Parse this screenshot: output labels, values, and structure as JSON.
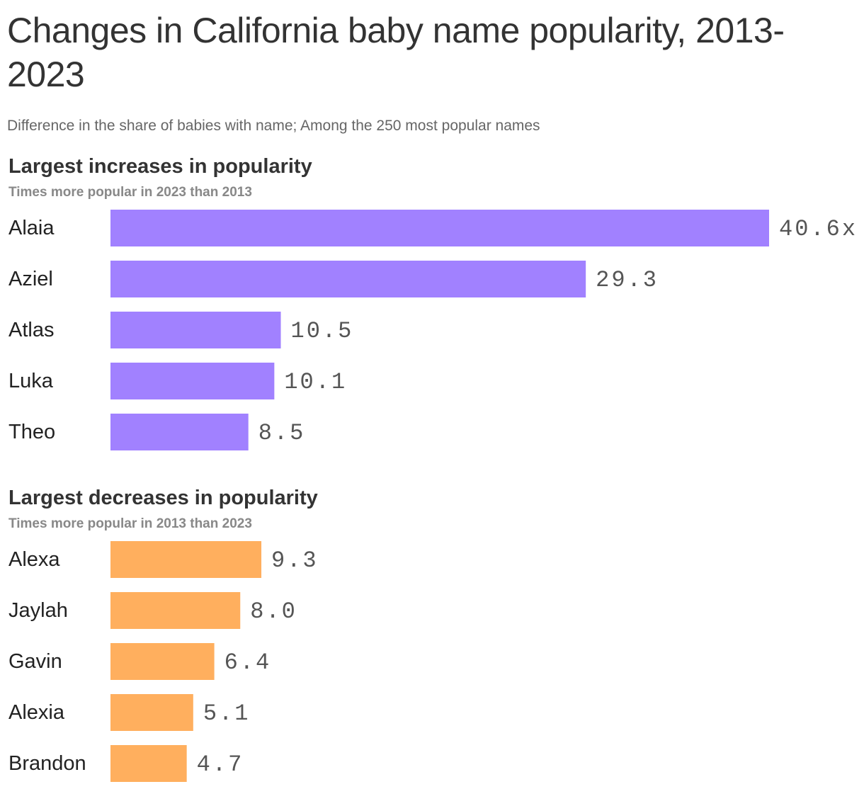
{
  "title": "Changes in California baby name popularity, 2013-2023",
  "subtitle": "Difference in the share of babies with name; Among the 250 most popular names",
  "chart_data": [
    {
      "type": "bar",
      "orientation": "horizontal",
      "title": "Largest increases in popularity",
      "subtitle": "Times more popular in 2023 than 2013",
      "categories": [
        "Alaia",
        "Aziel",
        "Atlas",
        "Luka",
        "Theo"
      ],
      "values": [
        40.6,
        29.3,
        10.5,
        10.1,
        8.5
      ],
      "value_labels": [
        "40.6x",
        "29.3",
        "10.5",
        "10.1",
        "8.5"
      ],
      "xlim": [
        0,
        40.6
      ],
      "color": "#a181ff",
      "grid": false
    },
    {
      "type": "bar",
      "orientation": "horizontal",
      "title": "Largest decreases in popularity",
      "subtitle": "Times more popular in 2013 than 2023",
      "categories": [
        "Alexa",
        "Jaylah",
        "Gavin",
        "Alexia",
        "Brandon"
      ],
      "values": [
        9.3,
        8.0,
        6.4,
        5.1,
        4.7
      ],
      "value_labels": [
        "9.3",
        "8.0",
        "6.4",
        "5.1",
        "4.7"
      ],
      "xlim": [
        0,
        40.6
      ],
      "color": "#ffaf5e",
      "grid": false
    }
  ]
}
